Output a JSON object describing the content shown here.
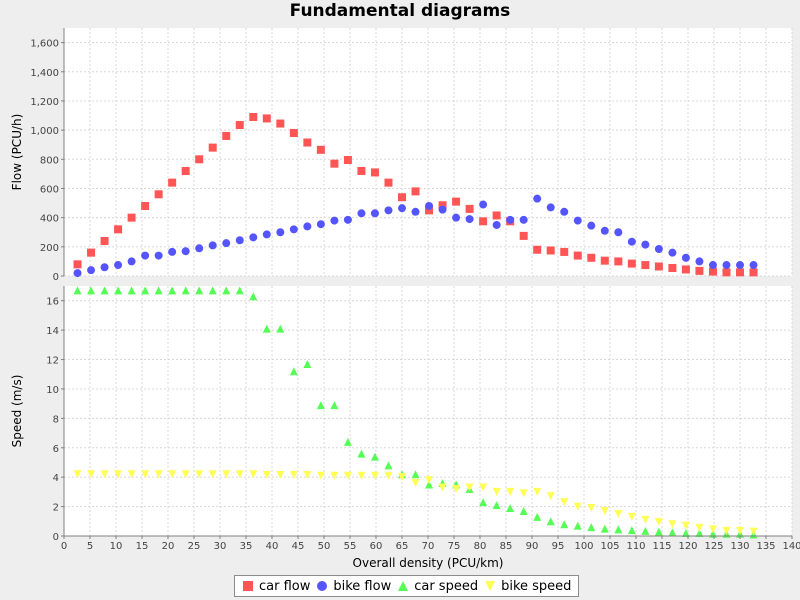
{
  "chart_data": {
    "title": "Fundamental diagrams",
    "type": "scatter",
    "x_axis": {
      "label": "Overall density (PCU/km)",
      "range": [
        0,
        140
      ],
      "ticks": [
        0,
        5,
        10,
        15,
        20,
        25,
        30,
        35,
        40,
        45,
        50,
        55,
        60,
        65,
        70,
        75,
        80,
        85,
        90,
        95,
        100,
        105,
        110,
        115,
        120,
        125,
        130,
        135,
        140
      ]
    },
    "grid": true,
    "legend_position": "bottom",
    "panels": [
      {
        "ylabel": "Flow (PCU/h)",
        "ylim": [
          0,
          1700
        ],
        "y_ticks": [
          0,
          200,
          400,
          600,
          800,
          1000,
          1200,
          1400,
          1600
        ],
        "y_tick_labels": [
          "0",
          "200",
          "400",
          "600",
          "800",
          "1,000",
          "1,200",
          "1,400",
          "1,600"
        ],
        "series": [
          {
            "name": "car flow",
            "marker": "square",
            "color": "#ff5555",
            "points": [
              [
                2.6,
                80
              ],
              [
                5.2,
                160
              ],
              [
                7.8,
                240
              ],
              [
                10.4,
                320
              ],
              [
                13.0,
                400
              ],
              [
                15.6,
                480
              ],
              [
                18.2,
                560
              ],
              [
                20.8,
                640
              ],
              [
                23.4,
                720
              ],
              [
                26.0,
                800
              ],
              [
                28.6,
                880
              ],
              [
                31.2,
                960
              ],
              [
                33.8,
                1035
              ],
              [
                36.4,
                1090
              ],
              [
                39.0,
                1080
              ],
              [
                41.6,
                1045
              ],
              [
                44.2,
                980
              ],
              [
                46.8,
                915
              ],
              [
                49.4,
                865
              ],
              [
                52.0,
                770
              ],
              [
                54.6,
                795
              ],
              [
                57.2,
                720
              ],
              [
                59.8,
                710
              ],
              [
                62.4,
                640
              ],
              [
                65.0,
                540
              ],
              [
                67.6,
                580
              ],
              [
                70.2,
                450
              ],
              [
                72.8,
                485
              ],
              [
                75.4,
                510
              ],
              [
                78.0,
                460
              ],
              [
                80.6,
                375
              ],
              [
                83.2,
                415
              ],
              [
                85.8,
                375
              ],
              [
                88.4,
                275
              ],
              [
                91.0,
                180
              ],
              [
                93.6,
                175
              ],
              [
                96.2,
                165
              ],
              [
                98.8,
                140
              ],
              [
                101.4,
                125
              ],
              [
                104.0,
                105
              ],
              [
                106.6,
                100
              ],
              [
                109.2,
                85
              ],
              [
                111.8,
                75
              ],
              [
                114.4,
                65
              ],
              [
                117.0,
                55
              ],
              [
                119.6,
                45
              ],
              [
                122.2,
                35
              ],
              [
                124.8,
                30
              ],
              [
                127.4,
                25
              ],
              [
                130.0,
                25
              ],
              [
                132.6,
                25
              ]
            ]
          },
          {
            "name": "bike flow",
            "marker": "circle",
            "color": "#5555ff",
            "points": [
              [
                2.6,
                20
              ],
              [
                5.2,
                40
              ],
              [
                7.8,
                60
              ],
              [
                10.4,
                75
              ],
              [
                13.0,
                100
              ],
              [
                15.6,
                140
              ],
              [
                18.2,
                140
              ],
              [
                20.8,
                165
              ],
              [
                23.4,
                170
              ],
              [
                26.0,
                190
              ],
              [
                28.6,
                210
              ],
              [
                31.2,
                225
              ],
              [
                33.8,
                245
              ],
              [
                36.4,
                265
              ],
              [
                39.0,
                285
              ],
              [
                41.6,
                300
              ],
              [
                44.2,
                320
              ],
              [
                46.8,
                340
              ],
              [
                49.4,
                355
              ],
              [
                52.0,
                380
              ],
              [
                54.6,
                385
              ],
              [
                57.2,
                430
              ],
              [
                59.8,
                430
              ],
              [
                62.4,
                450
              ],
              [
                65.0,
                465
              ],
              [
                67.6,
                440
              ],
              [
                70.2,
                480
              ],
              [
                72.8,
                455
              ],
              [
                75.4,
                400
              ],
              [
                78.0,
                390
              ],
              [
                80.6,
                490
              ],
              [
                83.2,
                350
              ],
              [
                85.8,
                385
              ],
              [
                88.4,
                385
              ],
              [
                91.0,
                530
              ],
              [
                93.6,
                470
              ],
              [
                96.2,
                440
              ],
              [
                98.8,
                380
              ],
              [
                101.4,
                345
              ],
              [
                104.0,
                310
              ],
              [
                106.6,
                300
              ],
              [
                109.2,
                235
              ],
              [
                111.8,
                215
              ],
              [
                114.4,
                185
              ],
              [
                117.0,
                160
              ],
              [
                119.6,
                125
              ],
              [
                122.2,
                100
              ],
              [
                124.8,
                75
              ],
              [
                127.4,
                75
              ],
              [
                130.0,
                75
              ],
              [
                132.6,
                75
              ]
            ]
          }
        ]
      },
      {
        "ylabel": "Speed (m/s)",
        "ylim": [
          0,
          17
        ],
        "y_ticks": [
          0,
          2,
          4,
          6,
          8,
          10,
          12,
          14,
          16
        ],
        "y_tick_labels": [
          "0",
          "2",
          "4",
          "6",
          "8",
          "10",
          "12",
          "14",
          "16"
        ],
        "series": [
          {
            "name": "car speed",
            "marker": "triangle",
            "color": "#55ff55",
            "points": [
              [
                2.6,
                16.7
              ],
              [
                5.2,
                16.7
              ],
              [
                7.8,
                16.7
              ],
              [
                10.4,
                16.7
              ],
              [
                13.0,
                16.7
              ],
              [
                15.6,
                16.7
              ],
              [
                18.2,
                16.7
              ],
              [
                20.8,
                16.7
              ],
              [
                23.4,
                16.7
              ],
              [
                26.0,
                16.7
              ],
              [
                28.6,
                16.7
              ],
              [
                31.2,
                16.7
              ],
              [
                33.8,
                16.7
              ],
              [
                36.4,
                16.3
              ],
              [
                39.0,
                14.1
              ],
              [
                41.6,
                14.1
              ],
              [
                44.2,
                11.2
              ],
              [
                46.8,
                11.7
              ],
              [
                49.4,
                8.9
              ],
              [
                52.0,
                8.9
              ],
              [
                54.6,
                6.4
              ],
              [
                57.2,
                5.6
              ],
              [
                59.8,
                5.4
              ],
              [
                62.4,
                4.8
              ],
              [
                65.0,
                4.2
              ],
              [
                67.6,
                4.2
              ],
              [
                70.2,
                3.5
              ],
              [
                72.8,
                3.6
              ],
              [
                75.4,
                3.5
              ],
              [
                78.0,
                3.2
              ],
              [
                80.6,
                2.3
              ],
              [
                83.2,
                2.1
              ],
              [
                85.8,
                1.9
              ],
              [
                88.4,
                1.7
              ],
              [
                91.0,
                1.3
              ],
              [
                93.6,
                1.0
              ],
              [
                96.2,
                0.8
              ],
              [
                98.8,
                0.7
              ],
              [
                101.4,
                0.6
              ],
              [
                104.0,
                0.5
              ],
              [
                106.6,
                0.45
              ],
              [
                109.2,
                0.4
              ],
              [
                111.8,
                0.35
              ],
              [
                114.4,
                0.3
              ],
              [
                117.0,
                0.25
              ],
              [
                119.6,
                0.2
              ],
              [
                122.2,
                0.2
              ],
              [
                124.8,
                0.15
              ],
              [
                127.4,
                0.15
              ],
              [
                130.0,
                0.15
              ],
              [
                132.6,
                0.1
              ]
            ]
          },
          {
            "name": "bike speed",
            "marker": "triangle-down",
            "color": "#ffff55",
            "points": [
              [
                2.6,
                4.2
              ],
              [
                5.2,
                4.2
              ],
              [
                7.8,
                4.2
              ],
              [
                10.4,
                4.2
              ],
              [
                13.0,
                4.2
              ],
              [
                15.6,
                4.2
              ],
              [
                18.2,
                4.2
              ],
              [
                20.8,
                4.2
              ],
              [
                23.4,
                4.2
              ],
              [
                26.0,
                4.2
              ],
              [
                28.6,
                4.2
              ],
              [
                31.2,
                4.2
              ],
              [
                33.8,
                4.2
              ],
              [
                36.4,
                4.2
              ],
              [
                39.0,
                4.15
              ],
              [
                41.6,
                4.15
              ],
              [
                44.2,
                4.15
              ],
              [
                46.8,
                4.15
              ],
              [
                49.4,
                4.1
              ],
              [
                52.0,
                4.1
              ],
              [
                54.6,
                4.1
              ],
              [
                57.2,
                4.1
              ],
              [
                59.8,
                4.1
              ],
              [
                62.4,
                4.1
              ],
              [
                65.0,
                4.0
              ],
              [
                67.6,
                3.6
              ],
              [
                70.2,
                3.8
              ],
              [
                72.8,
                3.3
              ],
              [
                75.4,
                3.2
              ],
              [
                78.0,
                3.3
              ],
              [
                80.6,
                3.3
              ],
              [
                83.2,
                3.0
              ],
              [
                85.8,
                3.0
              ],
              [
                88.4,
                2.9
              ],
              [
                91.0,
                3.0
              ],
              [
                93.6,
                2.7
              ],
              [
                96.2,
                2.3
              ],
              [
                98.8,
                2.0
              ],
              [
                101.4,
                1.9
              ],
              [
                104.0,
                1.7
              ],
              [
                106.6,
                1.5
              ],
              [
                109.2,
                1.3
              ],
              [
                111.8,
                1.1
              ],
              [
                114.4,
                0.95
              ],
              [
                117.0,
                0.8
              ],
              [
                119.6,
                0.7
              ],
              [
                122.2,
                0.55
              ],
              [
                124.8,
                0.45
              ],
              [
                127.4,
                0.35
              ],
              [
                130.0,
                0.35
              ],
              [
                132.6,
                0.3
              ]
            ]
          }
        ]
      }
    ]
  }
}
